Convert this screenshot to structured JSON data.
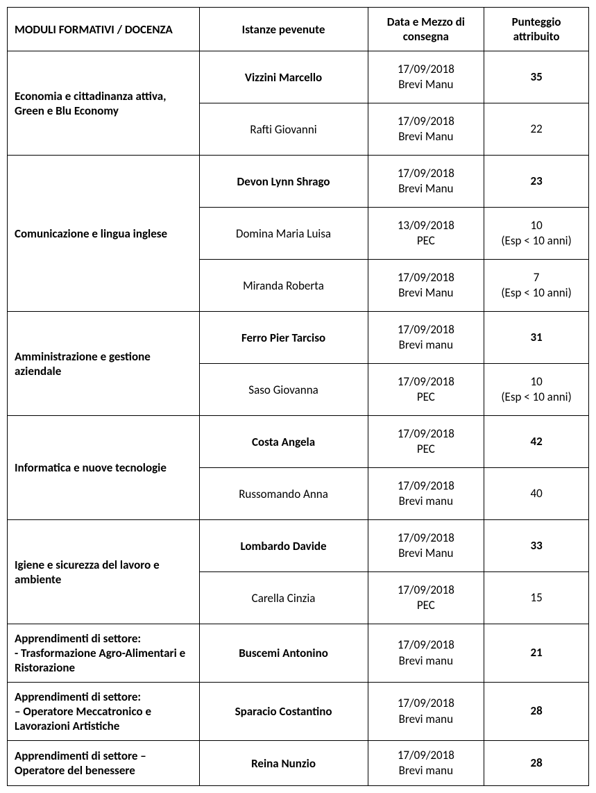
{
  "headers": {
    "module": "MODULI FORMATIVI / DOCENZA",
    "name": "Istanze pevenute",
    "date": "Data e Mezzo di consegna",
    "score": "Punteggio attribuito"
  },
  "modules": [
    {
      "label": "Economia e cittadinanza attiva, Green e Blu Economy",
      "rows": [
        {
          "name": "Vizzini Marcello",
          "name_bold": true,
          "date": "17/09/2018",
          "mezzo": "Brevi Manu",
          "score": "35",
          "score_bold": true,
          "note": ""
        },
        {
          "name": "Rafti Giovanni",
          "name_bold": false,
          "date": "17/09/2018",
          "mezzo": "Brevi Manu",
          "score": "22",
          "score_bold": false,
          "note": ""
        }
      ]
    },
    {
      "label": "Comunicazione e lingua inglese",
      "rows": [
        {
          "name": "Devon Lynn Shrago",
          "name_bold": true,
          "date": "17/09/2018",
          "mezzo": "Brevi Manu",
          "score": "23",
          "score_bold": true,
          "note": ""
        },
        {
          "name": "Domina Maria Luisa",
          "name_bold": false,
          "date": "13/09/2018",
          "mezzo": "PEC",
          "score": "10",
          "score_bold": false,
          "note": "(Esp < 10 anni)"
        },
        {
          "name": "Miranda Roberta",
          "name_bold": false,
          "date": "17/09/2018",
          "mezzo": "Brevi Manu",
          "score": "7",
          "score_bold": false,
          "note": "(Esp < 10 anni)"
        }
      ]
    },
    {
      "label": "Amministrazione e gestione aziendale",
      "rows": [
        {
          "name": "Ferro Pier Tarciso",
          "name_bold": true,
          "date": "17/09/2018",
          "mezzo": "Brevi manu",
          "score": "31",
          "score_bold": true,
          "note": ""
        },
        {
          "name": "Saso Giovanna",
          "name_bold": false,
          "date": "17/09/2018",
          "mezzo": "PEC",
          "score": "10",
          "score_bold": false,
          "note": "(Esp < 10 anni)"
        }
      ]
    },
    {
      "label": "Informatica e nuove tecnologie",
      "rows": [
        {
          "name": "Costa Angela",
          "name_bold": true,
          "date": "17/09/2018",
          "mezzo": "PEC",
          "score": "42",
          "score_bold": true,
          "note": ""
        },
        {
          "name": "Russomando Anna",
          "name_bold": false,
          "date": "17/09/2018",
          "mezzo": "Brevi manu",
          "score": "40",
          "score_bold": false,
          "note": ""
        }
      ]
    },
    {
      "label": "Igiene e sicurezza del lavoro e ambiente",
      "rows": [
        {
          "name": "Lombardo Davide",
          "name_bold": true,
          "date": "17/09/2018",
          "mezzo": "Brevi Manu",
          "score": "33",
          "score_bold": true,
          "note": ""
        },
        {
          "name": "Carella Cinzia",
          "name_bold": false,
          "date": "17/09/2018",
          "mezzo": "PEC",
          "score": "15",
          "score_bold": false,
          "note": ""
        }
      ]
    },
    {
      "label": "Apprendimenti di settore:\n- Trasformazione Agro-Alimentari  e Ristorazione",
      "rows": [
        {
          "name": "Buscemi Antonino",
          "name_bold": true,
          "date": "17/09/2018",
          "mezzo": "Brevi manu",
          "score": "21",
          "score_bold": true,
          "note": ""
        }
      ]
    },
    {
      "label": "Apprendimenti di settore:\n– Operatore Meccatronico e Lavorazioni Artistiche",
      "rows": [
        {
          "name": "Sparacio Costantino",
          "name_bold": true,
          "date": "17/09/2018",
          "mezzo": "Brevi manu",
          "score": "28",
          "score_bold": true,
          "note": ""
        }
      ]
    },
    {
      "label": "Apprendimenti di settore – Operatore del benessere",
      "rows": [
        {
          "name": "Reina Nunzio",
          "name_bold": true,
          "date": "17/09/2018",
          "mezzo": "Brevi manu",
          "score": "28",
          "score_bold": true,
          "note": ""
        }
      ]
    }
  ],
  "styling": {
    "border_color": "#000000",
    "background_color": "#ffffff",
    "text_color": "#000000",
    "font_family": "Calibri, Arial, sans-serif",
    "header_fontsize": 17,
    "cell_fontsize": 17,
    "border_width": 1.5,
    "col_widths_pct": [
      33,
      29,
      20,
      18
    ]
  }
}
